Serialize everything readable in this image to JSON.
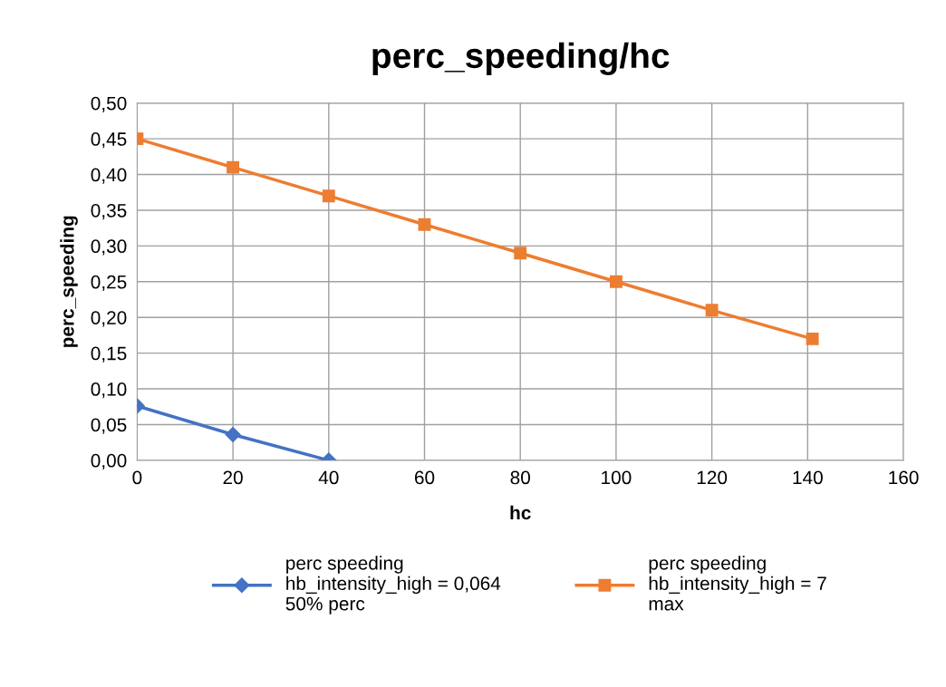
{
  "chart_data": {
    "type": "line",
    "title": "perc_speeding/hc",
    "xlabel": "hc",
    "ylabel": "perc_speeding",
    "series": [
      {
        "name": "perc speeding\nhb_intensity_high = 0,064\n50% perc",
        "color": "#4472c4",
        "marker": "diamond",
        "x": [
          0,
          20,
          40
        ],
        "values": [
          0.076,
          0.036,
          0.0
        ]
      },
      {
        "name": "perc speeding\nhb_intensity_high = 7\nmax",
        "color": "#ed7d31",
        "marker": "square",
        "x": [
          0,
          20,
          40,
          60,
          80,
          100,
          120,
          141
        ],
        "values": [
          0.45,
          0.41,
          0.37,
          0.33,
          0.29,
          0.25,
          0.21,
          0.17
        ]
      }
    ],
    "xlim": [
      0,
      160
    ],
    "xticks": [
      0,
      20,
      40,
      60,
      80,
      100,
      120,
      140,
      160
    ],
    "ylim": [
      0,
      0.5
    ],
    "yticks": [
      {
        "value": 0,
        "label": "0,00"
      },
      {
        "value": 0.05,
        "label": "0,05"
      },
      {
        "value": 0.1,
        "label": "0,10"
      },
      {
        "value": 0.15,
        "label": "0,15"
      },
      {
        "value": 0.2,
        "label": "0,20"
      },
      {
        "value": 0.25,
        "label": "0,25"
      },
      {
        "value": 0.3,
        "label": "0,30"
      },
      {
        "value": 0.35,
        "label": "0,35"
      },
      {
        "value": 0.4,
        "label": "0,40"
      },
      {
        "value": 0.45,
        "label": "0,45"
      },
      {
        "value": 0.5,
        "label": "0,50"
      }
    ],
    "grid": true,
    "legend": "bottom",
    "line_style": "solid"
  }
}
